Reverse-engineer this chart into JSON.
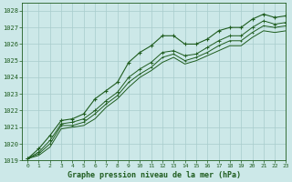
{
  "title": "Graphe pression niveau de la mer (hPa)",
  "bg_color": "#cce8e8",
  "grid_color": "#a8cccc",
  "line_color": "#1e5c1e",
  "xlim": [
    -0.5,
    23
  ],
  "ylim": [
    1019,
    1028.5
  ],
  "yticks": [
    1019,
    1020,
    1021,
    1022,
    1023,
    1024,
    1025,
    1026,
    1027,
    1028
  ],
  "xticks": [
    0,
    1,
    2,
    3,
    4,
    5,
    6,
    7,
    8,
    9,
    10,
    11,
    12,
    13,
    14,
    15,
    16,
    17,
    18,
    19,
    20,
    21,
    22,
    23
  ],
  "series_upper": {
    "x": [
      0,
      1,
      2,
      3,
      4,
      5,
      6,
      7,
      8,
      9,
      10,
      11,
      12,
      13,
      14,
      15,
      16,
      17,
      18,
      19,
      20,
      21,
      22,
      23
    ],
    "y": [
      1019.1,
      1019.7,
      1020.5,
      1021.4,
      1021.5,
      1021.8,
      1022.7,
      1023.2,
      1023.7,
      1024.9,
      1025.5,
      1025.9,
      1026.5,
      1026.5,
      1026.0,
      1026.0,
      1026.3,
      1026.8,
      1027.0,
      1027.0,
      1027.5,
      1027.8,
      1027.6,
      1027.7
    ]
  },
  "series_mid1": {
    "x": [
      0,
      1,
      2,
      3,
      4,
      5,
      6,
      7,
      8,
      9,
      10,
      11,
      12,
      13,
      14,
      15,
      16,
      17,
      18,
      19,
      20,
      21,
      22,
      23
    ],
    "y": [
      1019.1,
      1019.5,
      1020.2,
      1021.2,
      1021.3,
      1021.5,
      1022.0,
      1022.6,
      1023.1,
      1024.0,
      1024.5,
      1024.9,
      1025.5,
      1025.6,
      1025.3,
      1025.4,
      1025.8,
      1026.2,
      1026.5,
      1026.5,
      1027.0,
      1027.4,
      1027.2,
      1027.3
    ]
  },
  "series_mid2": {
    "x": [
      0,
      1,
      2,
      3,
      4,
      5,
      6,
      7,
      8,
      9,
      10,
      11,
      12,
      13,
      14,
      15,
      16,
      17,
      18,
      19,
      20,
      21,
      22,
      23
    ],
    "y": [
      1019.1,
      1019.4,
      1020.0,
      1021.1,
      1021.1,
      1021.3,
      1021.8,
      1022.4,
      1022.9,
      1023.7,
      1024.2,
      1024.6,
      1025.2,
      1025.4,
      1025.0,
      1025.2,
      1025.5,
      1025.9,
      1026.2,
      1026.2,
      1026.7,
      1027.1,
      1027.0,
      1027.1
    ]
  },
  "series_lower": {
    "x": [
      0,
      1,
      2,
      3,
      4,
      5,
      6,
      7,
      8,
      9,
      10,
      11,
      12,
      13,
      14,
      15,
      16,
      17,
      18,
      19,
      20,
      21,
      22,
      23
    ],
    "y": [
      1019.1,
      1019.3,
      1019.8,
      1020.9,
      1021.0,
      1021.1,
      1021.5,
      1022.2,
      1022.7,
      1023.4,
      1024.0,
      1024.4,
      1024.9,
      1025.2,
      1024.8,
      1025.0,
      1025.3,
      1025.6,
      1025.9,
      1025.9,
      1026.4,
      1026.8,
      1026.7,
      1026.8
    ]
  }
}
